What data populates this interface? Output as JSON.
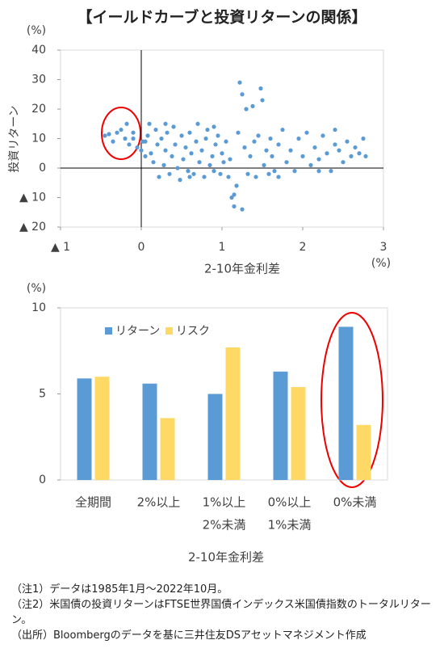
{
  "title": "【イールドカーブと投資リターンの関係】",
  "chart_data": [
    {
      "type": "scatter",
      "y_unit": "(%)",
      "y_label": "投資リターン",
      "x_label": "2-10年金利差",
      "x_unit": "(%)",
      "color": "#5b9bd5",
      "xlim": [
        -1,
        3
      ],
      "xticks": [
        {
          "value": -1,
          "label": "▲ 1"
        },
        0,
        1,
        2,
        3
      ],
      "ylim": [
        -20,
        40
      ],
      "yticks": [
        {
          "value": -20,
          "label": "▲ 20"
        },
        {
          "value": -10,
          "label": "▲ 10"
        },
        0,
        10,
        20,
        30,
        40
      ],
      "x": [
        -0.45,
        -0.4,
        -0.35,
        -0.3,
        -0.25,
        -0.2,
        -0.18,
        -0.15,
        -0.1,
        -0.05,
        0,
        0.02,
        0.05,
        0.08,
        0.1,
        0.12,
        0.15,
        0.18,
        0.2,
        0.22,
        0.25,
        0.28,
        0.3,
        0.32,
        0.35,
        0.38,
        0.4,
        0.42,
        0.45,
        0.48,
        0.5,
        0.52,
        0.55,
        0.58,
        0.6,
        0.62,
        0.65,
        0.68,
        0.7,
        0.72,
        0.75,
        0.78,
        0.8,
        0.82,
        0.85,
        0.88,
        0.9,
        0.92,
        0.95,
        0.98,
        1.0,
        1.02,
        1.05,
        1.08,
        1.1,
        1.12,
        1.15,
        1.18,
        1.2,
        1.22,
        1.25,
        1.28,
        1.3,
        1.32,
        1.35,
        1.38,
        1.4,
        1.42,
        1.45,
        1.48,
        1.5,
        1.52,
        1.55,
        1.58,
        1.6,
        1.62,
        1.65,
        1.7,
        1.75,
        1.8,
        1.85,
        1.9,
        1.95,
        2.0,
        2.05,
        2.1,
        2.15,
        2.2,
        2.25,
        2.3,
        2.35,
        2.4,
        2.45,
        2.5,
        2.55,
        2.6,
        2.65,
        2.7,
        2.75,
        2.78,
        1.25,
        0.6,
        0.3,
        1.15,
        2.2,
        0.9,
        1.7,
        2.4,
        0.05,
        -0.1
      ],
      "values": [
        11,
        11.5,
        9,
        12,
        13,
        10,
        15,
        8,
        12,
        7,
        6,
        9,
        4,
        11,
        15,
        5,
        2,
        13,
        8,
        -3,
        10,
        1,
        6,
        12,
        -2,
        4,
        14,
        8,
        0,
        -4,
        11,
        3,
        7,
        -1,
        12,
        5,
        -2,
        9,
        15,
        2,
        6,
        -3,
        10,
        13,
        1,
        4,
        -1,
        8,
        11,
        -2,
        5,
        2,
        9,
        -3,
        3,
        -10,
        -13,
        -6,
        12,
        29,
        25,
        7,
        20,
        -2,
        4,
        21,
        9,
        -3,
        11,
        27,
        23,
        1,
        6,
        -2,
        10,
        4,
        -1,
        8,
        13,
        2,
        6,
        -1,
        10,
        4,
        12,
        1,
        7,
        3,
        11,
        5,
        -1,
        13,
        6,
        2,
        9,
        4,
        7,
        5,
        10,
        4,
        -14,
        -3,
        15,
        -9,
        -1,
        14,
        -3,
        8,
        9,
        10
      ]
    },
    {
      "type": "bar",
      "y_unit": "(%)",
      "x_label": "2-10年金利差",
      "categories": [
        [
          "全期間"
        ],
        [
          "2%以上"
        ],
        [
          "1%以上",
          "2%未満"
        ],
        [
          "0%以上",
          "1%未満"
        ],
        [
          "0%未満"
        ]
      ],
      "series": [
        {
          "name": "リターン",
          "color": "#5b9bd5",
          "values": [
            5.9,
            5.6,
            5.0,
            6.3,
            8.9
          ]
        },
        {
          "name": "リスク",
          "color": "#ffd966",
          "values": [
            6.0,
            3.6,
            7.7,
            5.4,
            3.2
          ]
        }
      ],
      "ylim": [
        0,
        10
      ],
      "yticks": [
        0,
        5,
        10
      ]
    }
  ],
  "notes": [
    "（注1）データは1985年1月～2022年10月。",
    "（注2）米国債の投資リターンはFTSE世界国債インデックス米国債指数のトータルリターン。",
    "（出所）Bloombergのデータを基に三井住友DSアセットマネジメント作成"
  ]
}
